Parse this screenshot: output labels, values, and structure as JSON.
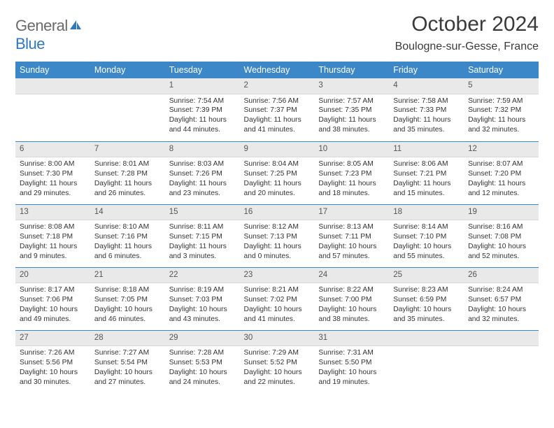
{
  "brand": {
    "general": "General",
    "blue": "Blue"
  },
  "title": "October 2024",
  "location": "Boulogne-sur-Gesse, France",
  "colors": {
    "header_bg": "#3b87c8",
    "header_fg": "#ffffff",
    "daynum_bg": "#e9e9e9",
    "sep": "#3b87c8",
    "brand_grey": "#6a6a6a",
    "brand_blue": "#2f78bd"
  },
  "weekdays": [
    "Sunday",
    "Monday",
    "Tuesday",
    "Wednesday",
    "Thursday",
    "Friday",
    "Saturday"
  ],
  "weeks": [
    [
      null,
      null,
      {
        "n": "1",
        "sr": "Sunrise: 7:54 AM",
        "ss": "Sunset: 7:39 PM",
        "dl": "Daylight: 11 hours and 44 minutes."
      },
      {
        "n": "2",
        "sr": "Sunrise: 7:56 AM",
        "ss": "Sunset: 7:37 PM",
        "dl": "Daylight: 11 hours and 41 minutes."
      },
      {
        "n": "3",
        "sr": "Sunrise: 7:57 AM",
        "ss": "Sunset: 7:35 PM",
        "dl": "Daylight: 11 hours and 38 minutes."
      },
      {
        "n": "4",
        "sr": "Sunrise: 7:58 AM",
        "ss": "Sunset: 7:33 PM",
        "dl": "Daylight: 11 hours and 35 minutes."
      },
      {
        "n": "5",
        "sr": "Sunrise: 7:59 AM",
        "ss": "Sunset: 7:32 PM",
        "dl": "Daylight: 11 hours and 32 minutes."
      }
    ],
    [
      {
        "n": "6",
        "sr": "Sunrise: 8:00 AM",
        "ss": "Sunset: 7:30 PM",
        "dl": "Daylight: 11 hours and 29 minutes."
      },
      {
        "n": "7",
        "sr": "Sunrise: 8:01 AM",
        "ss": "Sunset: 7:28 PM",
        "dl": "Daylight: 11 hours and 26 minutes."
      },
      {
        "n": "8",
        "sr": "Sunrise: 8:03 AM",
        "ss": "Sunset: 7:26 PM",
        "dl": "Daylight: 11 hours and 23 minutes."
      },
      {
        "n": "9",
        "sr": "Sunrise: 8:04 AM",
        "ss": "Sunset: 7:25 PM",
        "dl": "Daylight: 11 hours and 20 minutes."
      },
      {
        "n": "10",
        "sr": "Sunrise: 8:05 AM",
        "ss": "Sunset: 7:23 PM",
        "dl": "Daylight: 11 hours and 18 minutes."
      },
      {
        "n": "11",
        "sr": "Sunrise: 8:06 AM",
        "ss": "Sunset: 7:21 PM",
        "dl": "Daylight: 11 hours and 15 minutes."
      },
      {
        "n": "12",
        "sr": "Sunrise: 8:07 AM",
        "ss": "Sunset: 7:20 PM",
        "dl": "Daylight: 11 hours and 12 minutes."
      }
    ],
    [
      {
        "n": "13",
        "sr": "Sunrise: 8:08 AM",
        "ss": "Sunset: 7:18 PM",
        "dl": "Daylight: 11 hours and 9 minutes."
      },
      {
        "n": "14",
        "sr": "Sunrise: 8:10 AM",
        "ss": "Sunset: 7:16 PM",
        "dl": "Daylight: 11 hours and 6 minutes."
      },
      {
        "n": "15",
        "sr": "Sunrise: 8:11 AM",
        "ss": "Sunset: 7:15 PM",
        "dl": "Daylight: 11 hours and 3 minutes."
      },
      {
        "n": "16",
        "sr": "Sunrise: 8:12 AM",
        "ss": "Sunset: 7:13 PM",
        "dl": "Daylight: 11 hours and 0 minutes."
      },
      {
        "n": "17",
        "sr": "Sunrise: 8:13 AM",
        "ss": "Sunset: 7:11 PM",
        "dl": "Daylight: 10 hours and 57 minutes."
      },
      {
        "n": "18",
        "sr": "Sunrise: 8:14 AM",
        "ss": "Sunset: 7:10 PM",
        "dl": "Daylight: 10 hours and 55 minutes."
      },
      {
        "n": "19",
        "sr": "Sunrise: 8:16 AM",
        "ss": "Sunset: 7:08 PM",
        "dl": "Daylight: 10 hours and 52 minutes."
      }
    ],
    [
      {
        "n": "20",
        "sr": "Sunrise: 8:17 AM",
        "ss": "Sunset: 7:06 PM",
        "dl": "Daylight: 10 hours and 49 minutes."
      },
      {
        "n": "21",
        "sr": "Sunrise: 8:18 AM",
        "ss": "Sunset: 7:05 PM",
        "dl": "Daylight: 10 hours and 46 minutes."
      },
      {
        "n": "22",
        "sr": "Sunrise: 8:19 AM",
        "ss": "Sunset: 7:03 PM",
        "dl": "Daylight: 10 hours and 43 minutes."
      },
      {
        "n": "23",
        "sr": "Sunrise: 8:21 AM",
        "ss": "Sunset: 7:02 PM",
        "dl": "Daylight: 10 hours and 41 minutes."
      },
      {
        "n": "24",
        "sr": "Sunrise: 8:22 AM",
        "ss": "Sunset: 7:00 PM",
        "dl": "Daylight: 10 hours and 38 minutes."
      },
      {
        "n": "25",
        "sr": "Sunrise: 8:23 AM",
        "ss": "Sunset: 6:59 PM",
        "dl": "Daylight: 10 hours and 35 minutes."
      },
      {
        "n": "26",
        "sr": "Sunrise: 8:24 AM",
        "ss": "Sunset: 6:57 PM",
        "dl": "Daylight: 10 hours and 32 minutes."
      }
    ],
    [
      {
        "n": "27",
        "sr": "Sunrise: 7:26 AM",
        "ss": "Sunset: 5:56 PM",
        "dl": "Daylight: 10 hours and 30 minutes."
      },
      {
        "n": "28",
        "sr": "Sunrise: 7:27 AM",
        "ss": "Sunset: 5:54 PM",
        "dl": "Daylight: 10 hours and 27 minutes."
      },
      {
        "n": "29",
        "sr": "Sunrise: 7:28 AM",
        "ss": "Sunset: 5:53 PM",
        "dl": "Daylight: 10 hours and 24 minutes."
      },
      {
        "n": "30",
        "sr": "Sunrise: 7:29 AM",
        "ss": "Sunset: 5:52 PM",
        "dl": "Daylight: 10 hours and 22 minutes."
      },
      {
        "n": "31",
        "sr": "Sunrise: 7:31 AM",
        "ss": "Sunset: 5:50 PM",
        "dl": "Daylight: 10 hours and 19 minutes."
      },
      null,
      null
    ]
  ]
}
